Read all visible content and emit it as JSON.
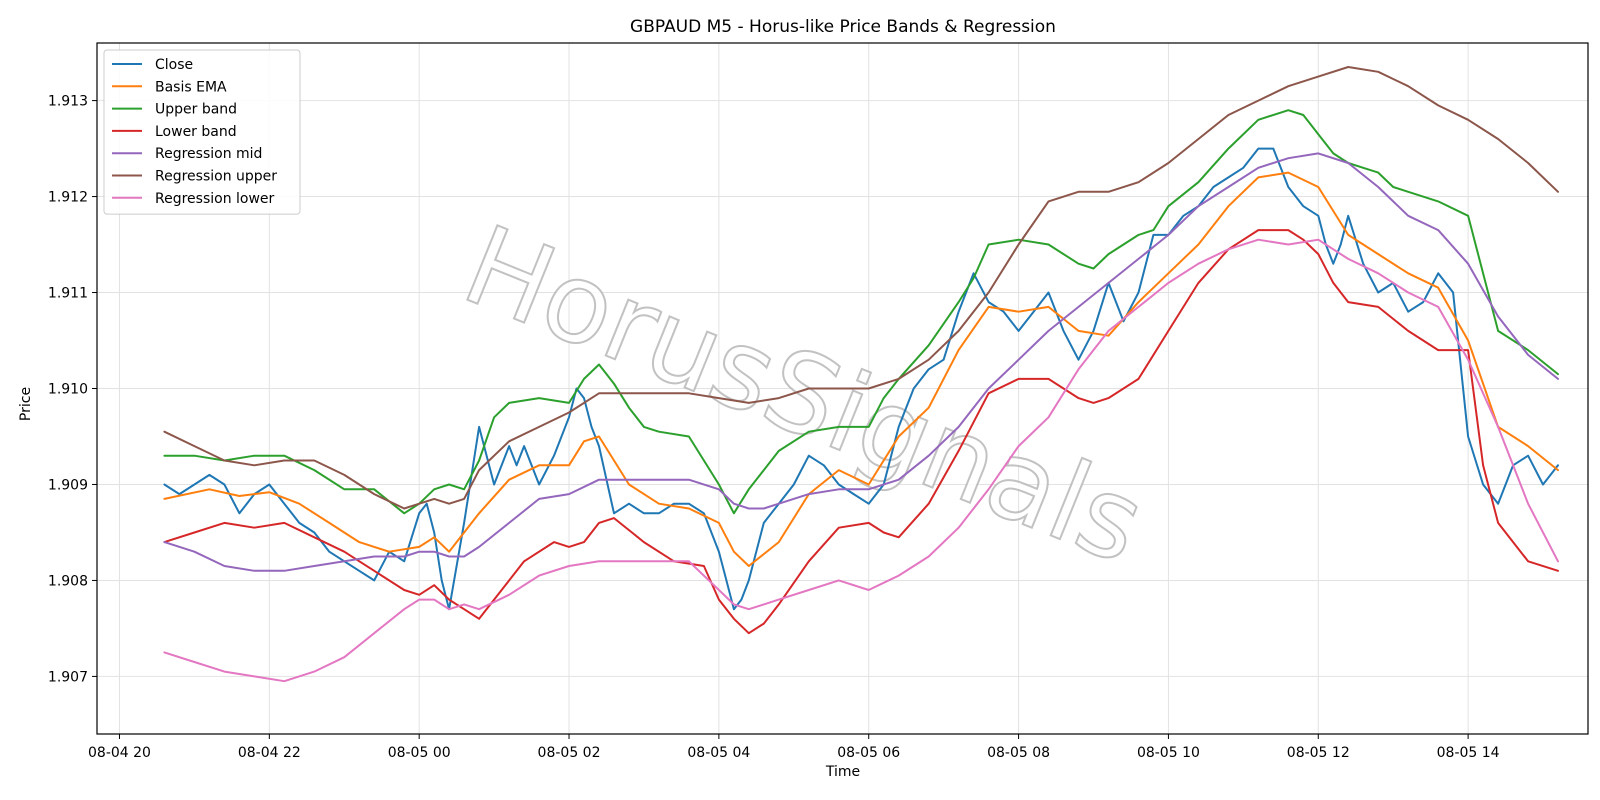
{
  "chart_data": {
    "type": "line",
    "title": "GBPAUD M5 - Horus-like Price Bands & Regression",
    "xlabel": "Time",
    "ylabel": "Price",
    "watermark": "HorusSignals",
    "grid": true,
    "legend_position": "top-left",
    "xlim": [
      -0.3,
      19.6
    ],
    "ylim": [
      1.9064,
      1.9136
    ],
    "x_ticks": [
      {
        "value": 0,
        "label": "08-04 20"
      },
      {
        "value": 2,
        "label": "08-04 22"
      },
      {
        "value": 4,
        "label": "08-05 00"
      },
      {
        "value": 6,
        "label": "08-05 02"
      },
      {
        "value": 8,
        "label": "08-05 04"
      },
      {
        "value": 10,
        "label": "08-05 06"
      },
      {
        "value": 12,
        "label": "08-05 08"
      },
      {
        "value": 14,
        "label": "08-05 10"
      },
      {
        "value": 16,
        "label": "08-05 12"
      },
      {
        "value": 18,
        "label": "08-05 14"
      }
    ],
    "y_ticks": [
      {
        "value": 1.907,
        "label": "1.907"
      },
      {
        "value": 1.908,
        "label": "1.908"
      },
      {
        "value": 1.909,
        "label": "1.909"
      },
      {
        "value": 1.91,
        "label": "1.910"
      },
      {
        "value": 1.911,
        "label": "1.911"
      },
      {
        "value": 1.912,
        "label": "1.912"
      },
      {
        "value": 1.913,
        "label": "1.913"
      }
    ],
    "series": [
      {
        "name": "Close",
        "color": "#1f77b4",
        "x": [
          0.6,
          0.8,
          1.0,
          1.2,
          1.4,
          1.6,
          1.8,
          2.0,
          2.2,
          2.4,
          2.6,
          2.8,
          3.0,
          3.2,
          3.4,
          3.6,
          3.8,
          4.0,
          4.1,
          4.2,
          4.3,
          4.4,
          4.6,
          4.8,
          5.0,
          5.2,
          5.3,
          5.4,
          5.6,
          5.8,
          6.0,
          6.1,
          6.2,
          6.3,
          6.4,
          6.6,
          6.8,
          7.0,
          7.2,
          7.4,
          7.6,
          7.8,
          8.0,
          8.1,
          8.2,
          8.3,
          8.4,
          8.6,
          8.8,
          9.0,
          9.2,
          9.4,
          9.6,
          9.8,
          10.0,
          10.2,
          10.4,
          10.6,
          10.8,
          11.0,
          11.2,
          11.4,
          11.6,
          11.8,
          12.0,
          12.2,
          12.4,
          12.6,
          12.8,
          13.0,
          13.2,
          13.4,
          13.6,
          13.8,
          14.0,
          14.2,
          14.4,
          14.6,
          14.8,
          15.0,
          15.2,
          15.4,
          15.6,
          15.8,
          16.0,
          16.1,
          16.2,
          16.3,
          16.4,
          16.6,
          16.8,
          17.0,
          17.2,
          17.4,
          17.6,
          17.8,
          18.0,
          18.2,
          18.4,
          18.6,
          18.8,
          19.0,
          19.2
        ],
        "y": [
          1.909,
          1.9089,
          1.909,
          1.9091,
          1.909,
          1.9087,
          1.9089,
          1.909,
          1.9088,
          1.9086,
          1.9085,
          1.9083,
          1.9082,
          1.9081,
          1.908,
          1.9083,
          1.9082,
          1.9087,
          1.9088,
          1.9085,
          1.908,
          1.9077,
          1.9086,
          1.9096,
          1.909,
          1.9094,
          1.9092,
          1.9094,
          1.909,
          1.9093,
          1.9097,
          1.91,
          1.9099,
          1.9096,
          1.9094,
          1.9087,
          1.9088,
          1.9087,
          1.9087,
          1.9088,
          1.9088,
          1.9087,
          1.9083,
          1.908,
          1.9077,
          1.9078,
          1.908,
          1.9086,
          1.9088,
          1.909,
          1.9093,
          1.9092,
          1.909,
          1.9089,
          1.9088,
          1.909,
          1.9096,
          1.91,
          1.9102,
          1.9103,
          1.9108,
          1.9112,
          1.9109,
          1.9108,
          1.9106,
          1.9108,
          1.911,
          1.9106,
          1.9103,
          1.9106,
          1.9111,
          1.9107,
          1.911,
          1.9116,
          1.9116,
          1.9118,
          1.9119,
          1.9121,
          1.9122,
          1.9123,
          1.9125,
          1.9125,
          1.9121,
          1.9119,
          1.9118,
          1.9115,
          1.9113,
          1.9115,
          1.9118,
          1.9113,
          1.911,
          1.9111,
          1.9108,
          1.9109,
          1.9112,
          1.911,
          1.9095,
          1.909,
          1.9088,
          1.9092,
          1.9093,
          1.909,
          1.9092
        ]
      },
      {
        "name": "Basis EMA",
        "color": "#ff7f0e",
        "x": [
          0.6,
          1.2,
          1.6,
          2.0,
          2.4,
          2.8,
          3.2,
          3.6,
          4.0,
          4.2,
          4.4,
          4.8,
          5.2,
          5.6,
          6.0,
          6.2,
          6.4,
          6.8,
          7.2,
          7.6,
          8.0,
          8.2,
          8.4,
          8.8,
          9.2,
          9.6,
          10.0,
          10.4,
          10.8,
          11.2,
          11.6,
          12.0,
          12.4,
          12.8,
          13.2,
          13.6,
          14.0,
          14.4,
          14.8,
          15.2,
          15.6,
          16.0,
          16.4,
          16.8,
          17.2,
          17.6,
          18.0,
          18.4,
          18.8,
          19.2
        ],
        "y": [
          1.90885,
          1.90895,
          1.90888,
          1.90892,
          1.9088,
          1.9086,
          1.9084,
          1.9083,
          1.90835,
          1.90845,
          1.9083,
          1.9087,
          1.90905,
          1.9092,
          1.9092,
          1.90945,
          1.9095,
          1.909,
          1.9088,
          1.90875,
          1.9086,
          1.9083,
          1.90815,
          1.9084,
          1.9089,
          1.90915,
          1.909,
          1.9095,
          1.9098,
          1.9104,
          1.91085,
          1.9108,
          1.91085,
          1.9106,
          1.91055,
          1.9109,
          1.9112,
          1.9115,
          1.9119,
          1.9122,
          1.91225,
          1.9121,
          1.9116,
          1.9114,
          1.9112,
          1.91105,
          1.9105,
          1.9096,
          1.9094,
          1.90915
        ]
      },
      {
        "name": "Upper band",
        "color": "#2ca02c",
        "x": [
          0.6,
          1.0,
          1.4,
          1.8,
          2.2,
          2.6,
          3.0,
          3.4,
          3.8,
          4.0,
          4.2,
          4.4,
          4.6,
          4.8,
          5.0,
          5.2,
          5.6,
          6.0,
          6.2,
          6.4,
          6.6,
          6.8,
          7.0,
          7.2,
          7.6,
          8.0,
          8.2,
          8.4,
          8.6,
          8.8,
          9.2,
          9.6,
          10.0,
          10.2,
          10.4,
          10.8,
          11.2,
          11.4,
          11.6,
          12.0,
          12.4,
          12.8,
          13.0,
          13.2,
          13.4,
          13.6,
          13.8,
          14.0,
          14.4,
          14.8,
          15.2,
          15.6,
          15.8,
          16.0,
          16.2,
          16.4,
          16.6,
          16.8,
          17.0,
          17.2,
          17.6,
          18.0,
          18.4,
          18.8,
          19.2
        ],
        "y": [
          1.9093,
          1.9093,
          1.90925,
          1.9093,
          1.9093,
          1.90915,
          1.90895,
          1.90895,
          1.9087,
          1.9088,
          1.90895,
          1.909,
          1.90895,
          1.90925,
          1.9097,
          1.90985,
          1.9099,
          1.90985,
          1.9101,
          1.91025,
          1.91005,
          1.9098,
          1.9096,
          1.90955,
          1.9095,
          1.909,
          1.9087,
          1.90895,
          1.90915,
          1.90935,
          1.90955,
          1.9096,
          1.9096,
          1.9099,
          1.9101,
          1.91045,
          1.9109,
          1.91115,
          1.9115,
          1.91155,
          1.9115,
          1.9113,
          1.91125,
          1.9114,
          1.9115,
          1.9116,
          1.91165,
          1.9119,
          1.91215,
          1.9125,
          1.9128,
          1.9129,
          1.91285,
          1.91265,
          1.91245,
          1.91235,
          1.9123,
          1.91225,
          1.9121,
          1.91205,
          1.91195,
          1.9118,
          1.9106,
          1.9104,
          1.91015
        ]
      },
      {
        "name": "Lower band",
        "color": "#d62728",
        "x": [
          0.6,
          1.0,
          1.4,
          1.8,
          2.2,
          2.6,
          3.0,
          3.4,
          3.8,
          4.0,
          4.2,
          4.4,
          4.6,
          4.8,
          5.0,
          5.4,
          5.8,
          6.0,
          6.2,
          6.4,
          6.6,
          7.0,
          7.4,
          7.8,
          8.0,
          8.2,
          8.4,
          8.6,
          8.8,
          9.2,
          9.6,
          10.0,
          10.2,
          10.4,
          10.8,
          11.2,
          11.6,
          12.0,
          12.4,
          12.8,
          13.0,
          13.2,
          13.6,
          14.0,
          14.4,
          14.8,
          15.2,
          15.6,
          15.8,
          16.0,
          16.2,
          16.4,
          16.8,
          17.2,
          17.6,
          18.0,
          18.2,
          18.4,
          18.8,
          19.2
        ],
        "y": [
          1.9084,
          1.9085,
          1.9086,
          1.90855,
          1.9086,
          1.90845,
          1.9083,
          1.9081,
          1.9079,
          1.90785,
          1.90795,
          1.9078,
          1.9077,
          1.9076,
          1.9078,
          1.9082,
          1.9084,
          1.90835,
          1.9084,
          1.9086,
          1.90865,
          1.9084,
          1.9082,
          1.90815,
          1.9078,
          1.9076,
          1.90745,
          1.90755,
          1.90775,
          1.9082,
          1.90855,
          1.9086,
          1.9085,
          1.90845,
          1.9088,
          1.90935,
          1.90995,
          1.9101,
          1.9101,
          1.9099,
          1.90985,
          1.9099,
          1.9101,
          1.9106,
          1.9111,
          1.91145,
          1.91165,
          1.91165,
          1.91155,
          1.9114,
          1.9111,
          1.9109,
          1.91085,
          1.9106,
          1.9104,
          1.9104,
          1.9092,
          1.9086,
          1.9082,
          1.9081
        ]
      },
      {
        "name": "Regression mid",
        "color": "#9467bd",
        "x": [
          0.6,
          1.0,
          1.4,
          1.8,
          2.2,
          2.6,
          3.0,
          3.4,
          3.8,
          4.0,
          4.2,
          4.4,
          4.6,
          4.8,
          5.2,
          5.6,
          6.0,
          6.4,
          6.8,
          7.2,
          7.6,
          8.0,
          8.2,
          8.4,
          8.6,
          8.8,
          9.2,
          9.6,
          10.0,
          10.4,
          10.8,
          11.2,
          11.6,
          12.0,
          12.4,
          12.8,
          13.2,
          13.6,
          14.0,
          14.4,
          14.8,
          15.2,
          15.6,
          16.0,
          16.4,
          16.8,
          17.2,
          17.6,
          18.0,
          18.4,
          18.8,
          19.2
        ],
        "y": [
          1.9084,
          1.9083,
          1.90815,
          1.9081,
          1.9081,
          1.90815,
          1.9082,
          1.90825,
          1.90825,
          1.9083,
          1.9083,
          1.90825,
          1.90825,
          1.90835,
          1.9086,
          1.90885,
          1.9089,
          1.90905,
          1.90905,
          1.90905,
          1.90905,
          1.90895,
          1.9088,
          1.90875,
          1.90875,
          1.9088,
          1.9089,
          1.90895,
          1.90895,
          1.90905,
          1.9093,
          1.9096,
          1.91,
          1.9103,
          1.9106,
          1.91085,
          1.9111,
          1.91135,
          1.9116,
          1.9119,
          1.9121,
          1.9123,
          1.9124,
          1.91245,
          1.91235,
          1.9121,
          1.9118,
          1.91165,
          1.9113,
          1.91075,
          1.91035,
          1.9101
        ]
      },
      {
        "name": "Regression upper",
        "color": "#8c564b",
        "x": [
          0.6,
          1.0,
          1.4,
          1.8,
          2.2,
          2.6,
          3.0,
          3.4,
          3.8,
          4.0,
          4.2,
          4.4,
          4.6,
          4.8,
          5.2,
          5.6,
          6.0,
          6.4,
          6.8,
          7.2,
          7.6,
          8.0,
          8.4,
          8.8,
          9.2,
          9.6,
          10.0,
          10.4,
          10.8,
          11.2,
          11.6,
          12.0,
          12.4,
          12.8,
          13.2,
          13.6,
          14.0,
          14.4,
          14.8,
          15.2,
          15.6,
          16.0,
          16.4,
          16.8,
          17.2,
          17.6,
          18.0,
          18.4,
          18.8,
          19.2
        ],
        "y": [
          1.90955,
          1.9094,
          1.90925,
          1.9092,
          1.90925,
          1.90925,
          1.9091,
          1.9089,
          1.90875,
          1.9088,
          1.90885,
          1.9088,
          1.90885,
          1.90915,
          1.90945,
          1.9096,
          1.90975,
          1.90995,
          1.90995,
          1.90995,
          1.90995,
          1.9099,
          1.90985,
          1.9099,
          1.91,
          1.91,
          1.91,
          1.9101,
          1.9103,
          1.9106,
          1.911,
          1.9115,
          1.91195,
          1.91205,
          1.91205,
          1.91215,
          1.91235,
          1.9126,
          1.91285,
          1.913,
          1.91315,
          1.91325,
          1.91335,
          1.9133,
          1.91315,
          1.91295,
          1.9128,
          1.9126,
          1.91235,
          1.91205
        ]
      },
      {
        "name": "Regression lower",
        "color": "#e377c2",
        "x": [
          0.6,
          1.0,
          1.4,
          1.8,
          2.2,
          2.6,
          3.0,
          3.4,
          3.8,
          4.0,
          4.2,
          4.4,
          4.6,
          4.8,
          5.2,
          5.6,
          6.0,
          6.4,
          6.8,
          7.2,
          7.6,
          8.0,
          8.2,
          8.4,
          8.6,
          8.8,
          9.2,
          9.6,
          10.0,
          10.4,
          10.8,
          11.2,
          11.6,
          12.0,
          12.4,
          12.8,
          13.2,
          13.6,
          14.0,
          14.4,
          14.8,
          15.2,
          15.6,
          16.0,
          16.4,
          16.8,
          17.2,
          17.6,
          18.0,
          18.4,
          18.8,
          19.2
        ],
        "y": [
          1.90725,
          1.90715,
          1.90705,
          1.907,
          1.90695,
          1.90705,
          1.9072,
          1.90745,
          1.9077,
          1.9078,
          1.9078,
          1.9077,
          1.90775,
          1.9077,
          1.90785,
          1.90805,
          1.90815,
          1.9082,
          1.9082,
          1.9082,
          1.9082,
          1.9079,
          1.90775,
          1.9077,
          1.90775,
          1.9078,
          1.9079,
          1.908,
          1.9079,
          1.90805,
          1.90825,
          1.90855,
          1.90895,
          1.9094,
          1.9097,
          1.9102,
          1.9106,
          1.91085,
          1.9111,
          1.9113,
          1.91145,
          1.91155,
          1.9115,
          1.91155,
          1.91135,
          1.9112,
          1.911,
          1.91085,
          1.9103,
          1.9096,
          1.9088,
          1.9082
        ]
      }
    ]
  }
}
